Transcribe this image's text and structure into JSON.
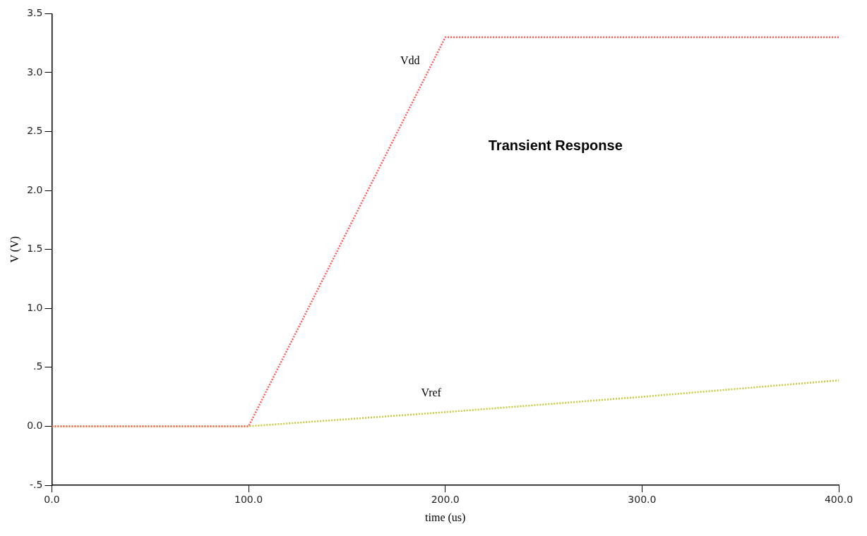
{
  "chart_data": {
    "type": "line",
    "title": "Transient Response",
    "xlabel": "time (us)",
    "ylabel": "V (V)",
    "series": [
      {
        "name": "Vdd",
        "color": "#ff5a5a",
        "x": [
          0,
          100,
          200,
          400
        ],
        "values": [
          0,
          0,
          3.3,
          3.3
        ]
      },
      {
        "name": "Vref",
        "color": "#c8c83c",
        "x": [
          0,
          100,
          200,
          300,
          400
        ],
        "values": [
          0,
          0,
          0.12,
          0.25,
          0.39
        ]
      }
    ],
    "xlim": [
      0,
      400
    ],
    "xticks": [
      {
        "value": 0,
        "label": "0.0"
      },
      {
        "value": 100,
        "label": "100.0"
      },
      {
        "value": 200,
        "label": "200.0"
      },
      {
        "value": 300,
        "label": "300.0"
      },
      {
        "value": 400,
        "label": "400.0"
      }
    ],
    "ylim": [
      -0.5,
      3.5
    ],
    "yticks": [
      {
        "value": -0.5,
        "label": "-.5"
      },
      {
        "value": 0,
        "label": "0.0"
      },
      {
        "value": 0.5,
        "label": ".5"
      },
      {
        "value": 1,
        "label": "1.0"
      },
      {
        "value": 1.5,
        "label": "1.5"
      },
      {
        "value": 2,
        "label": "2.0"
      },
      {
        "value": 2.5,
        "label": "2.5"
      },
      {
        "value": 3,
        "label": "3.0"
      },
      {
        "value": 3.5,
        "label": "3.5"
      }
    ],
    "grid": false,
    "legend": false,
    "marker": "none",
    "line_style": "dotted"
  }
}
